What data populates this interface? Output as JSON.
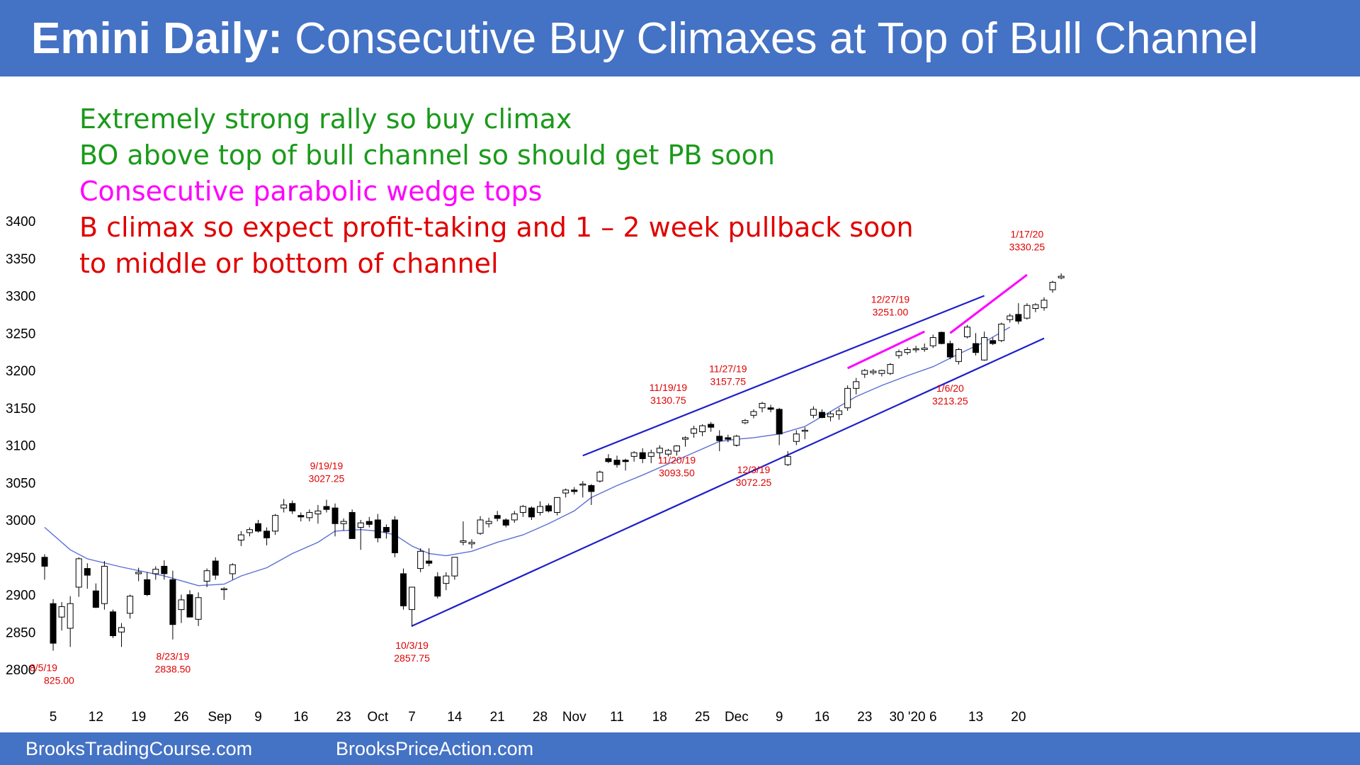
{
  "header": {
    "title_bold": "Emini Daily:",
    "title_rest": " Consecutive Buy Climaxes at Top of Bull Channel"
  },
  "notes": [
    {
      "text": "Extremely strong rally so buy climax",
      "color": "#1a9a1a"
    },
    {
      "text": "BO above top of bull channel so should get PB soon",
      "color": "#1a9a1a"
    },
    {
      "text": "Consecutive parabolic wedge tops",
      "color": "#ff00ff"
    },
    {
      "text": "B climax so expect profit-taking and 1 – 2 week pullback soon",
      "color": "#e00000"
    },
    {
      "text": "to middle or bottom of channel",
      "color": "#e00000"
    }
  ],
  "footer": {
    "left": "BrooksTradingCourse.com",
    "right": "BrooksPriceAction.com"
  },
  "colors": {
    "brand_blue": "#4472c4",
    "channel_line": "#1f1fcc",
    "moving_average": "#5b6fd6",
    "wedge": "#ff00ff",
    "annotation": "#e00000",
    "bull_candle": "#ffffff",
    "bear_candle": "#000000"
  },
  "chart_data": {
    "type": "candlestick",
    "title": "",
    "y_ticks": [
      2800,
      2850,
      2900,
      2950,
      3000,
      3050,
      3100,
      3150,
      3200,
      3250,
      3300,
      3350,
      3400
    ],
    "ylim": [
      2790,
      3410
    ],
    "x_ticks": [
      {
        "label": "5",
        "bar": 1
      },
      {
        "label": "12",
        "bar": 6
      },
      {
        "label": "19",
        "bar": 11
      },
      {
        "label": "26",
        "bar": 16
      },
      {
        "label": "Sep",
        "bar": 20.5
      },
      {
        "label": "9",
        "bar": 25
      },
      {
        "label": "16",
        "bar": 30
      },
      {
        "label": "23",
        "bar": 35
      },
      {
        "label": "Oct",
        "bar": 39
      },
      {
        "label": "7",
        "bar": 43
      },
      {
        "label": "14",
        "bar": 48
      },
      {
        "label": "21",
        "bar": 53
      },
      {
        "label": "28",
        "bar": 58
      },
      {
        "label": "Nov",
        "bar": 62
      },
      {
        "label": "11",
        "bar": 67
      },
      {
        "label": "18",
        "bar": 72
      },
      {
        "label": "25",
        "bar": 77
      },
      {
        "label": "Dec",
        "bar": 81
      },
      {
        "label": "9",
        "bar": 86
      },
      {
        "label": "16",
        "bar": 91
      },
      {
        "label": "23",
        "bar": 96
      },
      {
        "label": "30 '20",
        "bar": 101
      },
      {
        "label": "6",
        "bar": 104
      },
      {
        "label": "13",
        "bar": 109
      },
      {
        "label": "20",
        "bar": 114
      }
    ],
    "candles": [
      [
        2950,
        2954,
        2920,
        2938
      ],
      [
        2888,
        2894,
        2825,
        2835
      ],
      [
        2870,
        2890,
        2852,
        2884
      ],
      [
        2855,
        2898,
        2830,
        2888
      ],
      [
        2910,
        2950,
        2897,
        2948
      ],
      [
        2935,
        2942,
        2908,
        2926
      ],
      [
        2905,
        2915,
        2882,
        2883
      ],
      [
        2888,
        2945,
        2880,
        2938
      ],
      [
        2877,
        2880,
        2842,
        2845
      ],
      [
        2850,
        2862,
        2830,
        2856
      ],
      [
        2875,
        2900,
        2868,
        2898
      ],
      [
        2928,
        2936,
        2918,
        2930
      ],
      [
        2920,
        2930,
        2898,
        2900
      ],
      [
        2928,
        2938,
        2920,
        2934
      ],
      [
        2938,
        2946,
        2920,
        2928
      ],
      [
        2920,
        2932,
        2840,
        2860
      ],
      [
        2880,
        2900,
        2862,
        2893
      ],
      [
        2900,
        2906,
        2870,
        2870
      ],
      [
        2867,
        2903,
        2858,
        2896
      ],
      [
        2918,
        2935,
        2910,
        2932
      ],
      [
        2945,
        2950,
        2920,
        2926
      ],
      [
        2908,
        2910,
        2893,
        2908
      ],
      [
        2928,
        2942,
        2920,
        2940
      ],
      [
        2973,
        2985,
        2965,
        2980
      ],
      [
        2983,
        2990,
        2978,
        2987
      ],
      [
        2995,
        3000,
        2983,
        2985
      ],
      [
        2985,
        2990,
        2966,
        2976
      ],
      [
        2985,
        3008,
        2980,
        3006
      ],
      [
        3016,
        3028,
        3010,
        3020
      ],
      [
        3022,
        3026,
        3008,
        3012
      ],
      [
        3006,
        3010,
        2998,
        3004
      ],
      [
        3003,
        3014,
        2998,
        3010
      ],
      [
        3008,
        3020,
        2995,
        3012
      ],
      [
        3018,
        3027,
        3010,
        3014
      ],
      [
        3016,
        3022,
        2978,
        2995
      ],
      [
        2995,
        3002,
        2986,
        2998
      ],
      [
        3010,
        3014,
        2975,
        2975
      ],
      [
        2990,
        3000,
        2960,
        2996
      ],
      [
        2998,
        3004,
        2990,
        2994
      ],
      [
        3000,
        3008,
        2970,
        2976
      ],
      [
        2990,
        2994,
        2975,
        2984
      ],
      [
        3000,
        3005,
        2950,
        2956
      ],
      [
        2928,
        2935,
        2880,
        2885
      ],
      [
        2880,
        2910,
        2857,
        2910
      ],
      [
        2935,
        2962,
        2930,
        2958
      ],
      [
        2945,
        2962,
        2938,
        2942
      ],
      [
        2924,
        2930,
        2895,
        2898
      ],
      [
        2915,
        2930,
        2906,
        2925
      ],
      [
        2925,
        2950,
        2920,
        2950
      ],
      [
        2970,
        2998,
        2966,
        2972
      ],
      [
        2968,
        2974,
        2962,
        2970
      ],
      [
        2982,
        3005,
        2980,
        3000
      ],
      [
        2995,
        3003,
        2990,
        2998
      ],
      [
        3006,
        3012,
        2998,
        3002
      ],
      [
        3000,
        3002,
        2990,
        2993
      ],
      [
        3000,
        3012,
        2996,
        3008
      ],
      [
        3010,
        3020,
        3004,
        3018
      ],
      [
        3016,
        3018,
        3000,
        3004
      ],
      [
        3010,
        3025,
        3006,
        3018
      ],
      [
        3019,
        3022,
        3010,
        3012
      ],
      [
        3010,
        3030,
        3006,
        3030
      ],
      [
        3036,
        3042,
        3030,
        3040
      ],
      [
        3040,
        3044,
        3034,
        3038
      ],
      [
        3048,
        3052,
        3030,
        3048
      ],
      [
        3046,
        3048,
        3020,
        3038
      ],
      [
        3052,
        3066,
        3050,
        3064
      ],
      [
        3082,
        3088,
        3076,
        3078
      ],
      [
        3080,
        3086,
        3070,
        3074
      ],
      [
        3080,
        3082,
        3066,
        3078
      ],
      [
        3085,
        3092,
        3078,
        3090
      ],
      [
        3090,
        3096,
        3076,
        3082
      ],
      [
        3085,
        3094,
        3076,
        3090
      ],
      [
        3090,
        3100,
        3082,
        3096
      ],
      [
        3088,
        3095,
        3085,
        3093
      ],
      [
        3092,
        3100,
        3086,
        3099
      ],
      [
        3108,
        3112,
        3098,
        3110
      ],
      [
        3116,
        3126,
        3110,
        3122
      ],
      [
        3118,
        3128,
        3112,
        3126
      ],
      [
        3128,
        3131,
        3118,
        3124
      ],
      [
        3112,
        3120,
        3092,
        3106
      ],
      [
        3110,
        3114,
        3104,
        3108
      ],
      [
        3100,
        3114,
        3098,
        3112
      ],
      [
        3130,
        3135,
        3128,
        3133
      ],
      [
        3140,
        3148,
        3136,
        3145
      ],
      [
        3150,
        3158,
        3144,
        3156
      ],
      [
        3150,
        3154,
        3144,
        3148
      ],
      [
        3148,
        3150,
        3100,
        3115
      ],
      [
        3074,
        3092,
        3072,
        3085
      ],
      [
        3105,
        3120,
        3100,
        3115
      ],
      [
        3120,
        3124,
        3108,
        3120
      ],
      [
        3140,
        3152,
        3136,
        3148
      ],
      [
        3144,
        3148,
        3136,
        3137
      ],
      [
        3138,
        3145,
        3132,
        3142
      ],
      [
        3141,
        3150,
        3134,
        3146
      ],
      [
        3150,
        3180,
        3146,
        3176
      ],
      [
        3176,
        3190,
        3168,
        3185
      ],
      [
        3195,
        3202,
        3190,
        3200
      ],
      [
        3197,
        3202,
        3194,
        3199
      ],
      [
        3196,
        3201,
        3192,
        3200
      ],
      [
        3196,
        3210,
        3194,
        3208
      ],
      [
        3220,
        3228,
        3216,
        3225
      ],
      [
        3224,
        3231,
        3221,
        3228
      ],
      [
        3228,
        3233,
        3224,
        3229
      ],
      [
        3228,
        3236,
        3225,
        3230
      ],
      [
        3233,
        3248,
        3230,
        3244
      ],
      [
        3251,
        3252,
        3235,
        3236
      ],
      [
        3236,
        3240,
        3215,
        3218
      ],
      [
        3212,
        3230,
        3208,
        3228
      ],
      [
        3245,
        3261,
        3243,
        3258
      ],
      [
        3236,
        3250,
        3220,
        3224
      ],
      [
        3214,
        3252,
        3213,
        3244
      ],
      [
        3240,
        3244,
        3234,
        3236
      ],
      [
        3240,
        3264,
        3238,
        3262
      ],
      [
        3268,
        3276,
        3264,
        3273
      ],
      [
        3275,
        3290,
        3262,
        3266
      ],
      [
        3270,
        3290,
        3268,
        3287
      ],
      [
        3283,
        3290,
        3278,
        3288
      ],
      [
        3284,
        3298,
        3280,
        3294
      ],
      [
        3308,
        3320,
        3304,
        3318
      ],
      [
        3324,
        3330,
        3322,
        3326
      ]
    ],
    "moving_average": [
      [
        0,
        2990
      ],
      [
        3,
        2960
      ],
      [
        5,
        2948
      ],
      [
        9,
        2937
      ],
      [
        14,
        2925
      ],
      [
        18,
        2912
      ],
      [
        21,
        2914
      ],
      [
        23,
        2925
      ],
      [
        26,
        2936
      ],
      [
        29,
        2955
      ],
      [
        32,
        2970
      ],
      [
        34,
        2985
      ],
      [
        37,
        2987
      ],
      [
        39,
        2985
      ],
      [
        41,
        2980
      ],
      [
        43,
        2965
      ],
      [
        45,
        2955
      ],
      [
        47,
        2952
      ],
      [
        50,
        2958
      ],
      [
        53,
        2970
      ],
      [
        56,
        2980
      ],
      [
        59,
        2995
      ],
      [
        62,
        3012
      ],
      [
        64,
        3030
      ],
      [
        67,
        3046
      ],
      [
        70,
        3060
      ],
      [
        73,
        3075
      ],
      [
        76,
        3090
      ],
      [
        79,
        3105
      ],
      [
        81,
        3108
      ],
      [
        83,
        3110
      ],
      [
        86,
        3115
      ],
      [
        89,
        3125
      ],
      [
        92,
        3145
      ],
      [
        95,
        3165
      ],
      [
        98,
        3180
      ],
      [
        101,
        3193
      ],
      [
        104,
        3205
      ],
      [
        107,
        3222
      ],
      [
        110,
        3238
      ],
      [
        113,
        3258
      ]
    ],
    "channel_lines": [
      {
        "name": "upper",
        "from": [
          63,
          3086
        ],
        "to": [
          110,
          3300
        ]
      },
      {
        "name": "lower",
        "from": [
          43,
          2858
        ],
        "to": [
          117,
          3243
        ]
      }
    ],
    "wedge_lines": [
      {
        "from": [
          94,
          3203
        ],
        "to": [
          103,
          3252
        ]
      },
      {
        "from": [
          106,
          3250
        ],
        "to": [
          115,
          3328
        ]
      }
    ],
    "annotations": [
      {
        "date": "8/5/19",
        "value": "825.00",
        "bar": 1,
        "price": 2790,
        "anchor": "left"
      },
      {
        "date": "8/23/19",
        "value": "2838.50",
        "bar": 15,
        "price": 2805,
        "anchor": "middle"
      },
      {
        "date": "9/19/19",
        "value": "3027.25",
        "bar": 33,
        "price": 3060,
        "anchor": "middle"
      },
      {
        "date": "10/3/19",
        "value": "2857.75",
        "bar": 43,
        "price": 2820,
        "anchor": "middle"
      },
      {
        "date": "11/19/19",
        "value": "3130.75",
        "bar": 73,
        "price": 3165,
        "anchor": "middle"
      },
      {
        "date": "11/27/19",
        "value": "3157.75",
        "bar": 80,
        "price": 3190,
        "anchor": "middle"
      },
      {
        "date": "11/20/19",
        "value": "3093.50",
        "bar": 74,
        "price": 3068,
        "anchor": "middle"
      },
      {
        "date": "12/3/19",
        "value": "3072.25",
        "bar": 83,
        "price": 3055,
        "anchor": "middle"
      },
      {
        "date": "12/27/19",
        "value": "3251.00",
        "bar": 99,
        "price": 3283,
        "anchor": "middle"
      },
      {
        "date": "1/6/20",
        "value": "3213.25",
        "bar": 106,
        "price": 3164,
        "anchor": "middle"
      },
      {
        "date": "1/17/20",
        "value": "3330.25",
        "bar": 115,
        "price": 3370,
        "anchor": "middle"
      }
    ]
  }
}
